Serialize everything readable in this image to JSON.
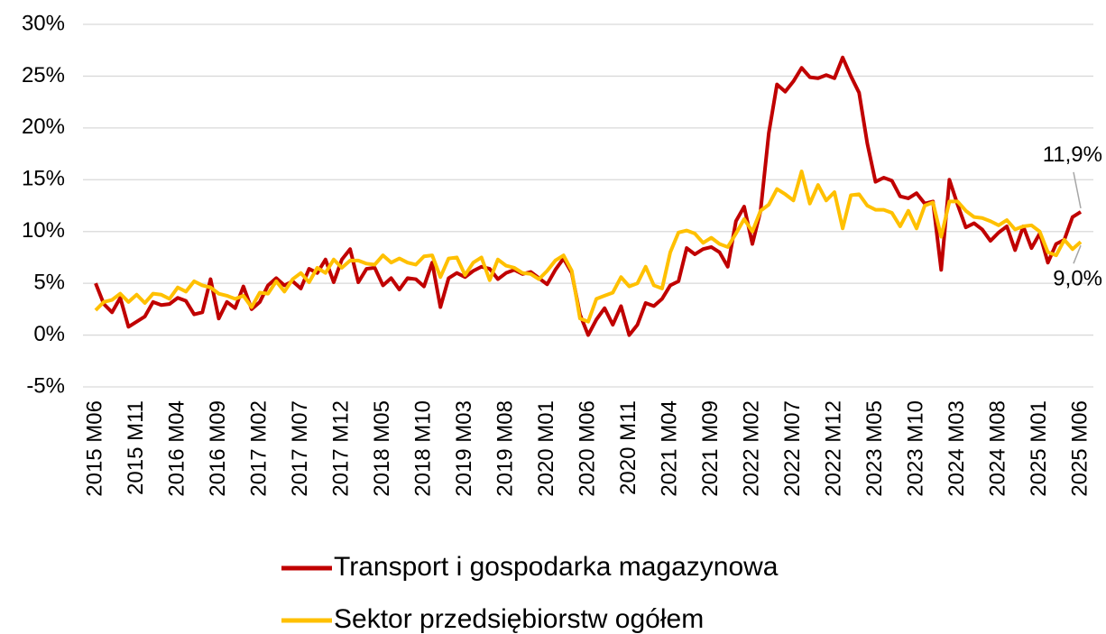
{
  "chart_data": {
    "type": "line",
    "categories": [
      "2015 M06",
      null,
      null,
      null,
      null,
      "2015 M11",
      null,
      null,
      null,
      null,
      "2016 M04",
      null,
      null,
      null,
      null,
      "2016 M09",
      null,
      null,
      null,
      null,
      "2017 M02",
      null,
      null,
      null,
      null,
      "2017 M07",
      null,
      null,
      null,
      null,
      "2017 M12",
      null,
      null,
      null,
      null,
      "2018 M05",
      null,
      null,
      null,
      null,
      "2018 M10",
      null,
      null,
      null,
      null,
      "2019 M03",
      null,
      null,
      null,
      null,
      "2019 M08",
      null,
      null,
      null,
      null,
      "2020 M01",
      null,
      null,
      null,
      null,
      "2020 M06",
      null,
      null,
      null,
      null,
      "2020 M11",
      null,
      null,
      null,
      null,
      "2021 M04",
      null,
      null,
      null,
      null,
      "2021 M09",
      null,
      null,
      null,
      null,
      "2022 M02",
      null,
      null,
      null,
      null,
      "2022 M07",
      null,
      null,
      null,
      null,
      "2022 M12",
      null,
      null,
      null,
      null,
      "2023 M05",
      null,
      null,
      null,
      null,
      "2023 M10",
      null,
      null,
      null,
      null,
      "2024 M03",
      null,
      null,
      null,
      null,
      "2024 M08",
      null,
      null,
      null,
      null,
      "2025 M01",
      null,
      null,
      null,
      null,
      "2025 M06"
    ],
    "series": [
      {
        "name": "Transport i gospodarka magazynowa",
        "color": "#c00000",
        "end_label": "11,9%",
        "values": [
          5.0,
          3.0,
          2.2,
          3.6,
          0.8,
          1.3,
          1.8,
          3.2,
          2.9,
          3.0,
          3.6,
          3.3,
          2.0,
          2.2,
          5.4,
          1.6,
          3.2,
          2.6,
          4.7,
          2.5,
          3.2,
          4.8,
          5.5,
          4.8,
          5.2,
          4.5,
          6.4,
          6.0,
          7.3,
          5.1,
          7.3,
          8.3,
          5.1,
          6.4,
          6.5,
          4.8,
          5.5,
          4.4,
          5.5,
          5.4,
          4.7,
          7.0,
          2.7,
          5.5,
          6.0,
          5.6,
          6.2,
          6.6,
          6.4,
          5.4,
          6.0,
          6.3,
          5.9,
          6.1,
          5.5,
          4.9,
          6.3,
          7.4,
          6.0,
          2.0,
          0.0,
          1.5,
          2.6,
          1.0,
          2.8,
          0.0,
          1.0,
          3.1,
          2.8,
          3.5,
          4.8,
          5.2,
          8.4,
          7.8,
          8.3,
          8.5,
          8.0,
          6.6,
          11.0,
          12.4,
          8.8,
          12.0,
          19.5,
          24.2,
          23.5,
          24.5,
          25.8,
          24.9,
          24.8,
          25.1,
          24.8,
          26.8,
          25.0,
          23.4,
          18.5,
          14.8,
          15.2,
          14.9,
          13.4,
          13.2,
          13.7,
          12.7,
          12.9,
          6.3,
          15.0,
          12.6,
          10.4,
          10.8,
          10.2,
          9.1,
          9.9,
          10.5,
          8.2,
          10.5,
          8.4,
          9.8,
          7.0,
          8.8,
          9.2,
          11.4,
          11.9
        ]
      },
      {
        "name": "Sektor przedsiębiorstw ogółem",
        "color": "#ffc000",
        "end_label": "9,0%",
        "values": [
          2.4,
          3.2,
          3.4,
          4.0,
          3.2,
          3.9,
          3.1,
          4.0,
          3.9,
          3.5,
          4.6,
          4.2,
          5.2,
          4.8,
          4.6,
          4.0,
          3.8,
          3.5,
          3.8,
          2.7,
          4.1,
          4.0,
          5.2,
          4.2,
          5.4,
          6.0,
          5.1,
          6.5,
          6.0,
          7.3,
          6.5,
          7.2,
          7.2,
          6.9,
          6.8,
          7.7,
          7.0,
          7.4,
          7.0,
          6.8,
          7.6,
          7.7,
          5.6,
          7.4,
          7.5,
          5.8,
          7.0,
          7.5,
          5.3,
          7.3,
          6.7,
          6.5,
          6.0,
          5.9,
          5.4,
          6.2,
          7.2,
          7.7,
          6.2,
          1.6,
          1.3,
          3.5,
          3.8,
          4.1,
          5.6,
          4.7,
          5.0,
          6.6,
          4.8,
          4.5,
          8.0,
          9.9,
          10.1,
          9.8,
          8.9,
          9.4,
          8.8,
          8.5,
          9.8,
          11.2,
          10.0,
          12.0,
          12.6,
          14.1,
          13.6,
          13.0,
          15.8,
          12.7,
          14.5,
          13.0,
          13.8,
          10.3,
          13.5,
          13.6,
          12.5,
          12.1,
          12.1,
          11.8,
          10.5,
          12.0,
          10.3,
          12.5,
          12.8,
          9.5,
          12.9,
          12.9,
          12.0,
          11.4,
          11.3,
          11.0,
          10.6,
          11.1,
          10.2,
          10.5,
          10.6,
          10.0,
          8.0,
          7.7,
          9.2,
          8.3,
          9.0
        ]
      }
    ],
    "ylim": [
      -5,
      30
    ],
    "yticks": [
      {
        "value": -5,
        "label": "-5%"
      },
      {
        "value": 0,
        "label": "0%"
      },
      {
        "value": 5,
        "label": "5%"
      },
      {
        "value": 10,
        "label": "10%"
      },
      {
        "value": 15,
        "label": "15%"
      },
      {
        "value": 20,
        "label": "20%"
      },
      {
        "value": 25,
        "label": "25%"
      },
      {
        "value": 30,
        "label": "30%"
      }
    ],
    "grid": true,
    "legend": "bottom"
  }
}
